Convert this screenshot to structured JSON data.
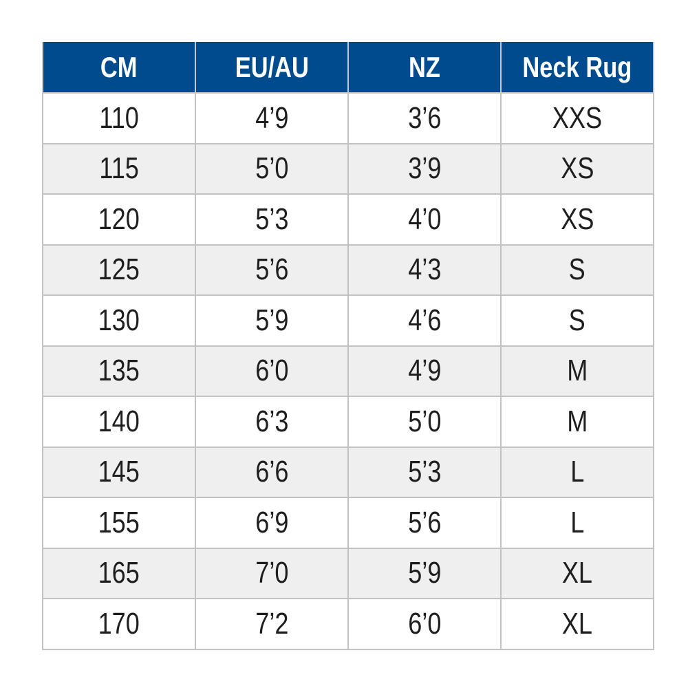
{
  "colors": {
    "header_bg": "#004b8d",
    "header_text": "#ffffff",
    "alt_row": "#efefef",
    "border": "#c2c2c2"
  },
  "table": {
    "headers": [
      "CM",
      "EU/AU",
      "NZ",
      "Neck Rug"
    ],
    "rows": [
      [
        "110",
        "4’9",
        "3’6",
        "XXS"
      ],
      [
        "115",
        "5’0",
        "3’9",
        "XS"
      ],
      [
        "120",
        "5’3",
        "4’0",
        "XS"
      ],
      [
        "125",
        "5’6",
        "4’3",
        "S"
      ],
      [
        "130",
        "5’9",
        "4’6",
        "S"
      ],
      [
        "135",
        "6’0",
        "4’9",
        "M"
      ],
      [
        "140",
        "6’3",
        "5’0",
        "M"
      ],
      [
        "145",
        "6’6",
        "5’3",
        "L"
      ],
      [
        "155",
        "6’9",
        "5’6",
        "L"
      ],
      [
        "165",
        "7’0",
        "5’9",
        "XL"
      ],
      [
        "170",
        "7’2",
        "6’0",
        "XL"
      ]
    ]
  }
}
